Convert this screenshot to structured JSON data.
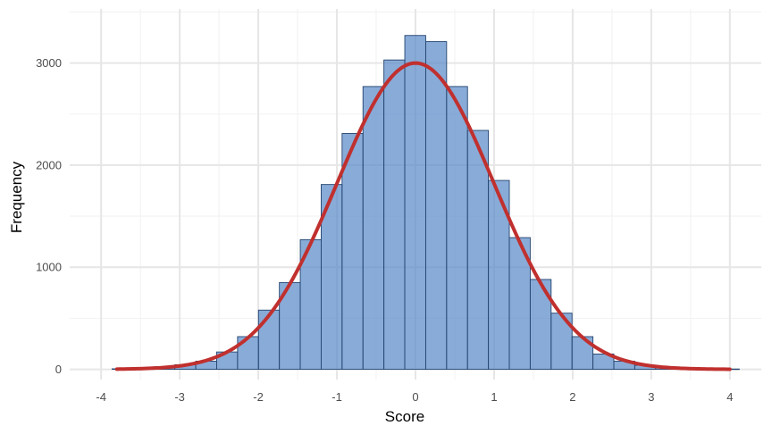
{
  "chart_data": {
    "type": "bar",
    "title": "",
    "xlabel": "Score",
    "ylabel": "Frequency",
    "xlim": [
      -4.4,
      4.4
    ],
    "ylim": [
      -100,
      3530
    ],
    "x_ticks": [
      -4,
      -3,
      -2,
      -1,
      0,
      1,
      2,
      3,
      4
    ],
    "x_tick_labels": [
      "-4",
      "-3",
      "-2",
      "-1",
      "0",
      "1",
      "2",
      "3",
      "4"
    ],
    "y_ticks": [
      0,
      1000,
      2000,
      3000
    ],
    "y_tick_labels": [
      "0",
      "1000",
      "2000",
      "3000"
    ],
    "grid": true,
    "legend": "none",
    "bin_width": 0.266,
    "bins": [
      {
        "x0": -3.86,
        "x1": -3.594,
        "count": 5
      },
      {
        "x0": -3.594,
        "x1": -3.328,
        "count": 10
      },
      {
        "x0": -3.328,
        "x1": -3.062,
        "count": 25
      },
      {
        "x0": -3.062,
        "x1": -2.796,
        "count": 45
      },
      {
        "x0": -2.796,
        "x1": -2.53,
        "count": 80
      },
      {
        "x0": -2.53,
        "x1": -2.264,
        "count": 170
      },
      {
        "x0": -2.264,
        "x1": -1.998,
        "count": 320
      },
      {
        "x0": -1.998,
        "x1": -1.732,
        "count": 580
      },
      {
        "x0": -1.732,
        "x1": -1.466,
        "count": 850
      },
      {
        "x0": -1.466,
        "x1": -1.2,
        "count": 1270
      },
      {
        "x0": -1.2,
        "x1": -0.934,
        "count": 1810
      },
      {
        "x0": -0.934,
        "x1": -0.668,
        "count": 2310
      },
      {
        "x0": -0.668,
        "x1": -0.402,
        "count": 2770
      },
      {
        "x0": -0.402,
        "x1": -0.136,
        "count": 3030
      },
      {
        "x0": -0.136,
        "x1": 0.13,
        "count": 3270
      },
      {
        "x0": 0.13,
        "x1": 0.396,
        "count": 3210
      },
      {
        "x0": 0.396,
        "x1": 0.662,
        "count": 2770
      },
      {
        "x0": 0.662,
        "x1": 0.928,
        "count": 2340
      },
      {
        "x0": 0.928,
        "x1": 1.194,
        "count": 1850
      },
      {
        "x0": 1.194,
        "x1": 1.46,
        "count": 1290
      },
      {
        "x0": 1.46,
        "x1": 1.726,
        "count": 880
      },
      {
        "x0": 1.726,
        "x1": 1.992,
        "count": 550
      },
      {
        "x0": 1.992,
        "x1": 2.258,
        "count": 320
      },
      {
        "x0": 2.258,
        "x1": 2.524,
        "count": 150
      },
      {
        "x0": 2.524,
        "x1": 2.79,
        "count": 80
      },
      {
        "x0": 2.79,
        "x1": 3.056,
        "count": 40
      },
      {
        "x0": 3.056,
        "x1": 3.322,
        "count": 20
      },
      {
        "x0": 3.322,
        "x1": 3.588,
        "count": 10
      },
      {
        "x0": 3.588,
        "x1": 3.854,
        "count": 5
      },
      {
        "x0": 3.854,
        "x1": 4.12,
        "count": 3
      }
    ],
    "density_curve": {
      "type": "normal",
      "mean": 0,
      "sd": 1,
      "peak": 3000,
      "x_range": [
        -3.8,
        4.0
      ]
    },
    "colors": {
      "bar_fill": "#5b8ac9",
      "bar_stroke": "#24446e",
      "curve": "#c0302e",
      "grid_major": "#e6e6e6",
      "grid_minor": "#f2f2f2"
    }
  }
}
